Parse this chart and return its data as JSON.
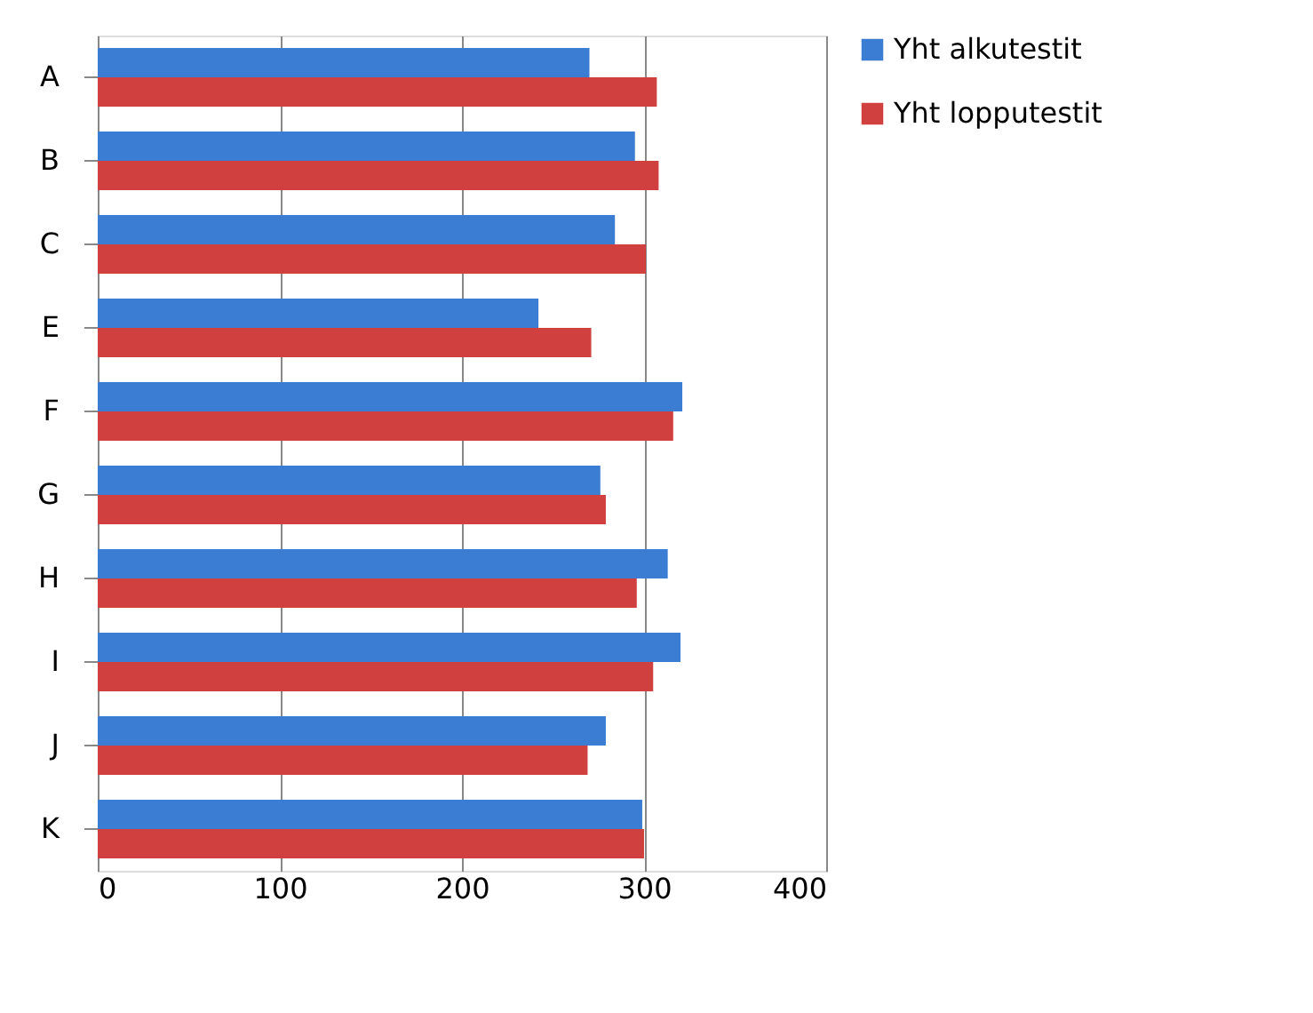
{
  "chart_data": {
    "type": "bar",
    "orientation": "horizontal",
    "categories": [
      "A",
      "B",
      "C",
      "E",
      "F",
      "G",
      "H",
      "I",
      "J",
      "K"
    ],
    "series": [
      {
        "name": "Yht alkutestit",
        "color": "#3c7dd4",
        "values": [
          270,
          295,
          284,
          242,
          321,
          276,
          313,
          320,
          279,
          299
        ]
      },
      {
        "name": "Yht lopputestit",
        "color": "#d0403f",
        "values": [
          307,
          308,
          301,
          271,
          316,
          279,
          296,
          305,
          269,
          300
        ]
      }
    ],
    "xlim": [
      0,
      400
    ],
    "xticks": [
      0,
      100,
      200,
      300,
      400
    ],
    "grid": "x",
    "legend": "right"
  }
}
